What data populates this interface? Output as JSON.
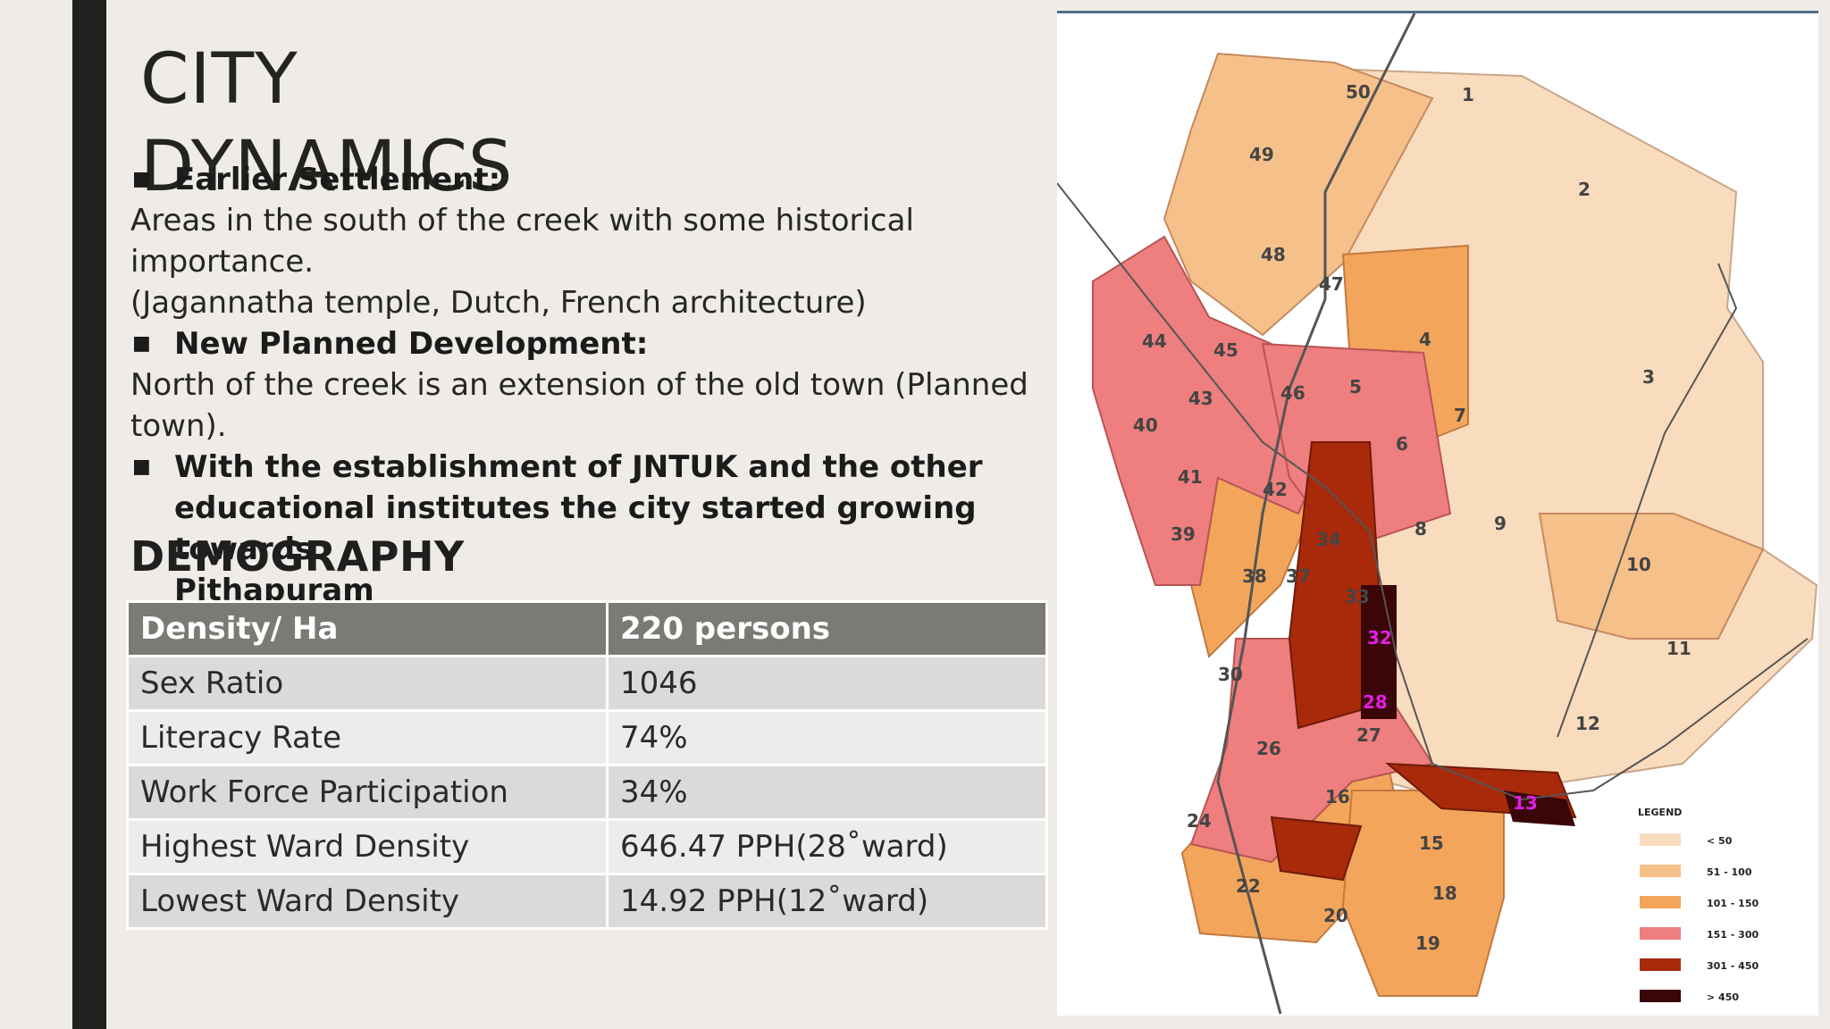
{
  "title": "CITY DYNAMICS",
  "sections": {
    "earlier_heading": "Earlier Settlement:",
    "earlier_text_1": "Areas in the south of the creek with some historical importance.",
    "earlier_text_2": "(Jagannatha temple, Dutch, French architecture)",
    "planned_heading": "New Planned Development:",
    "planned_text_1": "North of the creek is an extension of the old town (Planned",
    "planned_text_2": "town).",
    "growth_1": "With the establishment of JNTUK and the other",
    "growth_2": "educational institutes the city started growing towards",
    "growth_3": "Pithapuram"
  },
  "demography_title": "DEMOGRAPHY",
  "demography": {
    "header": [
      "Density/ Ha",
      "220 persons"
    ],
    "rows": [
      [
        "Sex Ratio",
        "1046"
      ],
      [
        "Literacy Rate",
        "74%"
      ],
      [
        "Work Force Participation",
        "34%"
      ],
      [
        "Highest Ward Density",
        "646.47 PPH(28˚ward)"
      ],
      [
        "Lowest Ward Density",
        "14.92 PPH(12˚ward)"
      ]
    ]
  },
  "map": {
    "legend_title": "LEGEND",
    "legend": [
      {
        "label": "< 50",
        "color": "#f9dcbd"
      },
      {
        "label": "51 - 100",
        "color": "#f6c08a"
      },
      {
        "label": "101 - 150",
        "color": "#f3a55b"
      },
      {
        "label": "151 - 300",
        "color": "#ef7e7e"
      },
      {
        "label": "301 - 450",
        "color": "#a82a0a"
      },
      {
        "label": "> 450",
        "color": "#3a0608"
      }
    ],
    "ward_labels": [
      "50",
      "1",
      "49",
      "2",
      "48",
      "47",
      "44",
      "45",
      "4",
      "3",
      "43",
      "46",
      "5",
      "7",
      "40",
      "6",
      "41",
      "42",
      "39",
      "9",
      "8",
      "10",
      "38",
      "37",
      "34",
      "33",
      "32",
      "11",
      "30",
      "28",
      "12",
      "27",
      "26",
      "16",
      "13",
      "24",
      "15",
      "22",
      "18",
      "20",
      "19"
    ]
  },
  "colors": {
    "background": "#efece7",
    "bar": "#1e211d",
    "table_header": "#7c7a75",
    "row_odd": "#dcdad8",
    "row_even": "#eeeceb"
  }
}
